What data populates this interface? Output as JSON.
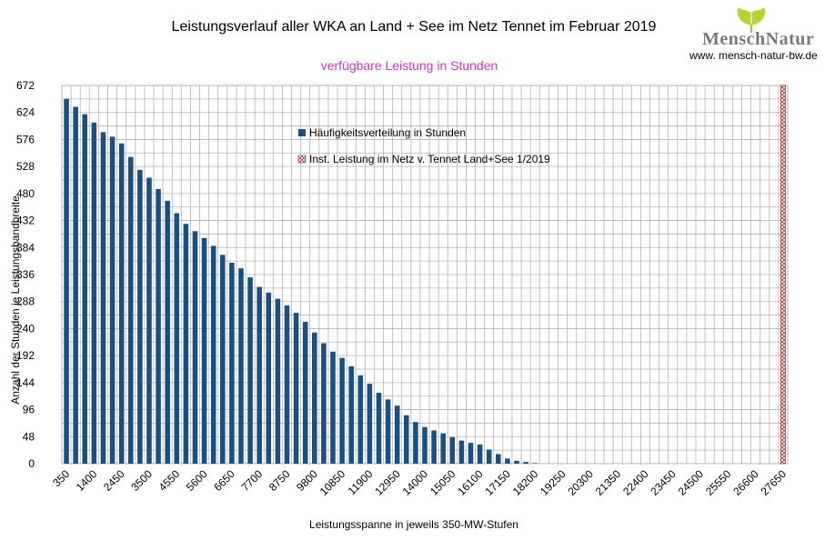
{
  "logo": {
    "text": "MenschNatur",
    "url": "www. mensch-natur-bw.de"
  },
  "chart_data": {
    "type": "bar",
    "title": "Leistungsverlauf aller WKA an Land + See im Netz Tennet im Februar 2019",
    "subtitle": "verfügbare Leistung in Stunden",
    "xlabel": "Leistungsspanne in jeweils 350-MW-Stufen",
    "ylabel": "Anzahl der Stunden je Leistungsbandbreite",
    "ylim": [
      0,
      672
    ],
    "yticks": [
      0,
      48,
      96,
      144,
      192,
      240,
      288,
      336,
      384,
      432,
      480,
      528,
      576,
      624,
      672
    ],
    "x_tick_labels": [
      "350",
      "1400",
      "2450",
      "3500",
      "4550",
      "5600",
      "6650",
      "7700",
      "8750",
      "9800",
      "10850",
      "11900",
      "12950",
      "14000",
      "15050",
      "16100",
      "17150",
      "18200",
      "19250",
      "20300",
      "21350",
      "22400",
      "23450",
      "24500",
      "25550",
      "26600",
      "27650"
    ],
    "x_start": 350,
    "x_step": 350,
    "grid": true,
    "legend_placement": "top-center",
    "colors": {
      "bars": "#1a4f7f",
      "installed": "#c0392b",
      "grid": "#b3b3b3",
      "subtitle": "#cc33cc"
    },
    "series": [
      {
        "name": "Häufigkeitsverteilung in Stunden",
        "values": [
          648,
          634,
          621,
          606,
          589,
          581,
          569,
          545,
          522,
          508,
          488,
          467,
          445,
          426,
          413,
          401,
          387,
          371,
          357,
          347,
          331,
          314,
          304,
          293,
          281,
          268,
          252,
          233,
          214,
          199,
          188,
          173,
          157,
          142,
          126,
          114,
          103,
          86,
          74,
          65,
          59,
          54,
          47,
          41,
          37,
          34,
          25,
          17,
          9,
          5,
          3,
          1,
          0,
          0,
          0,
          0,
          0,
          0,
          0,
          0,
          0,
          0,
          0,
          0,
          0,
          0,
          0,
          0,
          0,
          0,
          0,
          0,
          0,
          0,
          0,
          0,
          0,
          0,
          0
        ]
      },
      {
        "name": "Inst. Leistung im Netz v. Tennet  Land+See 1/2019",
        "x": 27650,
        "value": 672
      }
    ]
  }
}
